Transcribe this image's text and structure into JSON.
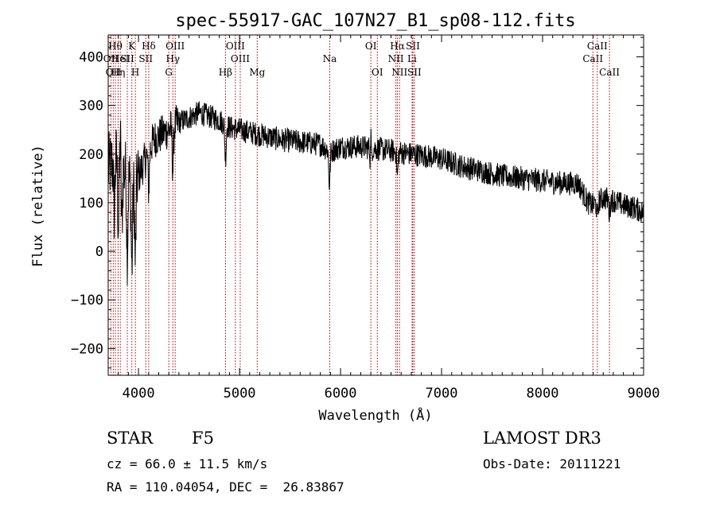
{
  "chart_data": {
    "type": "line",
    "title": "spec-55917-GAC_107N27_B1_sp08-112.fits",
    "xlabel": "Wavelength (Å)",
    "ylabel": "Flux (relative)",
    "xlim": [
      3700,
      9000
    ],
    "ylim": [
      -255,
      445
    ],
    "x_ticks": [
      4000,
      5000,
      6000,
      7000,
      8000,
      9000
    ],
    "y_ticks": [
      -200,
      -100,
      0,
      100,
      200,
      300,
      400
    ],
    "continuum": {
      "x": [
        3700,
        3780,
        3850,
        3950,
        4050,
        4150,
        4300,
        4400,
        4500,
        4600,
        4800,
        4900,
        5000,
        5200,
        5400,
        5600,
        5800,
        5900,
        6000,
        6200,
        6400,
        6560,
        6700,
        6800,
        7000,
        7200,
        7400,
        7600,
        7800,
        8000,
        8200,
        8350,
        8450,
        8500,
        8600,
        8700,
        8800,
        8900,
        9000
      ],
      "y": [
        170,
        190,
        170,
        130,
        180,
        230,
        250,
        265,
        275,
        285,
        270,
        255,
        250,
        240,
        230,
        225,
        220,
        205,
        215,
        215,
        210,
        205,
        200,
        198,
        190,
        175,
        165,
        155,
        150,
        145,
        140,
        140,
        100,
        95,
        110,
        105,
        95,
        90,
        80
      ]
    },
    "absorption_features": [
      {
        "x": 3760,
        "depth": 100
      },
      {
        "x": 3800,
        "depth": 130
      },
      {
        "x": 3835,
        "depth": 120
      },
      {
        "x": 3889,
        "depth": 150
      },
      {
        "x": 3934,
        "depth": 170
      },
      {
        "x": 3969,
        "depth": 160
      },
      {
        "x": 4101,
        "depth": 80
      },
      {
        "x": 4340,
        "depth": 90
      },
      {
        "x": 4861,
        "depth": 70
      },
      {
        "x": 5890,
        "depth": 70
      },
      {
        "x": 6300,
        "depth": 60
      },
      {
        "x": 6563,
        "depth": 50
      },
      {
        "x": 8542,
        "depth": 30
      },
      {
        "x": 8662,
        "depth": 30
      }
    ],
    "emission_features": [
      {
        "x": 3820,
        "height": 80
      },
      {
        "x": 6300,
        "height": 90
      }
    ],
    "noise_amplitude": 25,
    "line_markers": [
      {
        "x": 3727,
        "label": "OII",
        "row": 2
      },
      {
        "x": 3750,
        "label": "OII",
        "row": 3
      },
      {
        "x": 3771,
        "label": "Hθ",
        "row": 1
      },
      {
        "x": 3798,
        "label": "Hη",
        "row": 3
      },
      {
        "x": 3820,
        "label": "HeI",
        "row": 2
      },
      {
        "x": 3889,
        "label": "SII",
        "row": 2
      },
      {
        "x": 3934,
        "label": "K",
        "row": 1
      },
      {
        "x": 3969,
        "label": "H",
        "row": 3
      },
      {
        "x": 4072,
        "label": "SII",
        "row": 2
      },
      {
        "x": 4101,
        "label": "Hδ",
        "row": 1
      },
      {
        "x": 4300,
        "label": "G",
        "row": 3
      },
      {
        "x": 4340,
        "label": "Hγ",
        "row": 2
      },
      {
        "x": 4363,
        "label": "OIII",
        "row": 1
      },
      {
        "x": 4861,
        "label": "Hβ",
        "row": 3
      },
      {
        "x": 4959,
        "label": "OIII",
        "row": 1
      },
      {
        "x": 5007,
        "label": "OIII",
        "row": 2
      },
      {
        "x": 5175,
        "label": "Mg",
        "row": 3
      },
      {
        "x": 5893,
        "label": "Na",
        "row": 2
      },
      {
        "x": 6300,
        "label": "OI",
        "row": 1
      },
      {
        "x": 6364,
        "label": "OI",
        "row": 3
      },
      {
        "x": 6548,
        "label": "NII",
        "row": 2
      },
      {
        "x": 6563,
        "label": "Hα",
        "row": 1
      },
      {
        "x": 6584,
        "label": "NII",
        "row": 3
      },
      {
        "x": 6708,
        "label": "Li",
        "row": 2
      },
      {
        "x": 6716,
        "label": "SII",
        "row": 1
      },
      {
        "x": 6731,
        "label": "SII",
        "row": 3
      },
      {
        "x": 8498,
        "label": "CaII",
        "row": 2
      },
      {
        "x": 8542,
        "label": "CaII",
        "row": 1
      },
      {
        "x": 8662,
        "label": "CaII",
        "row": 3
      }
    ]
  },
  "info": {
    "class": "STAR",
    "subclass": "F5",
    "cz": "cz = 66.0 ± 11.5 km/s",
    "coords": "RA = 110.04054, DEC =  26.83867",
    "survey": "LAMOST DR3",
    "obs_date": "Obs-Date: 20111221"
  },
  "colors": {
    "spectrum": "#000000",
    "markers": "#b00000",
    "axes": "#000000",
    "background": "#ffffff"
  }
}
